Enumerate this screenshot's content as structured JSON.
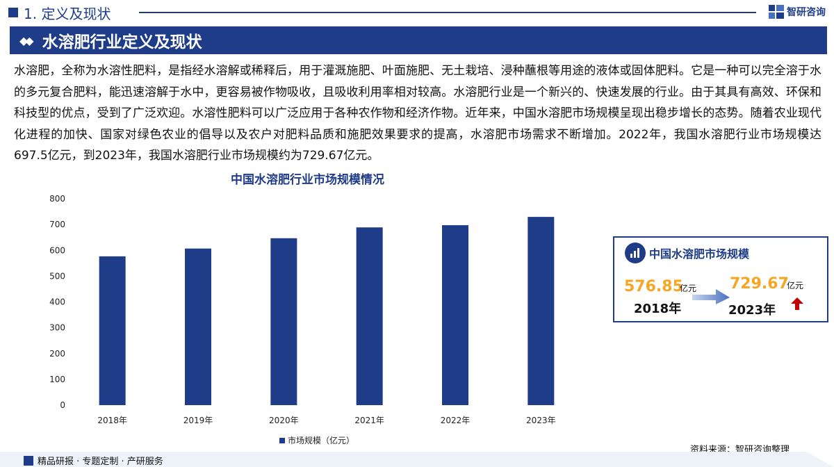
{
  "header": {
    "section": "1. 定义及现状",
    "brand": "智研咨询"
  },
  "banner": {
    "title": "水溶肥行业定义及现状"
  },
  "paragraph": "水溶肥，全称为水溶性肥料，是指经水溶解或稀释后，用于灌溉施肥、叶面施肥、无土栽培、浸种蘸根等用途的液体或固体肥料。它是一种可以完全溶于水的多元复合肥料，能迅速溶解于水中，更容易被作物吸收，且吸收利用率相对较高。水溶肥行业是一个新兴的、快速发展的行业。由于其具有高效、环保和科技型的优点，受到了广泛欢迎。水溶性肥料可以广泛应用于各种农作物和经济作物。近年来，中国水溶肥市场规模呈现出稳步增长的态势。随着农业现代化进程的加快、国家对绿色农业的倡导以及农户对肥料品质和施肥效果要求的提高，水溶肥市场需求不断增加。2022年，我国水溶肥行业市场规模达697.5亿元，到2023年，我国水溶肥行业市场规模约为729.67亿元。",
  "chart_data": {
    "type": "bar",
    "title": "中国水溶肥行业市场规模情况",
    "categories": [
      "2018年",
      "2019年",
      "2020年",
      "2021年",
      "2022年",
      "2023年"
    ],
    "series": [
      {
        "name": "市场规模（亿元）",
        "values": [
          576.85,
          607,
          647,
          689,
          697.5,
          729.67
        ]
      }
    ],
    "ylim": [
      0,
      800
    ],
    "yticks": [
      0,
      100,
      200,
      300,
      400,
      500,
      600,
      700,
      800
    ],
    "grid": false,
    "legend": "bottom",
    "bar_color": "#1f3c88"
  },
  "card": {
    "title": "中国水溶肥市场规模",
    "start_value": "576.85",
    "start_unit": "亿元",
    "start_year": "2018年",
    "end_value": "729.67",
    "end_unit": "亿元",
    "end_year": "2023年"
  },
  "source": "资料来源：智研咨询整理",
  "footer": "精品研报 · 专题定制 · 产研服务",
  "colors": {
    "primary": "#1f3c88",
    "accent": "#f5a623",
    "up_arrow": "#c00000"
  }
}
